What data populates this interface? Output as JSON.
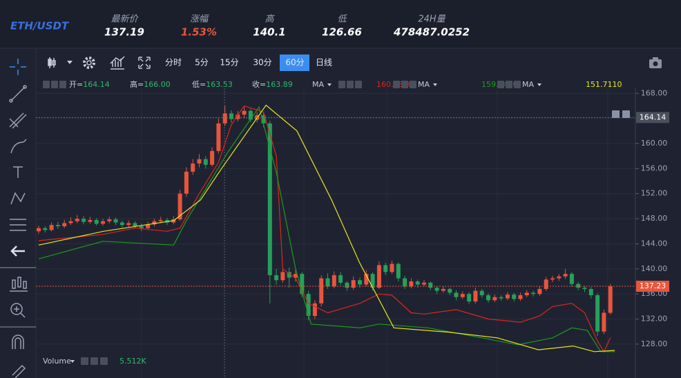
{
  "header": {
    "pair": "ETH/USDT",
    "stats": [
      {
        "label": "最新价",
        "value": "137.19"
      },
      {
        "label": "涨幅",
        "value": "1.53%"
      },
      {
        "label": "高",
        "value": "140.1"
      },
      {
        "label": "低",
        "value": "126.66"
      },
      {
        "label": "24H量",
        "value": "478487.0252"
      }
    ]
  },
  "toolbar": {
    "intervals": [
      "分时",
      "5分",
      "15分",
      "30分",
      "60分",
      "日线"
    ],
    "active": 4
  },
  "legend": {
    "ohlc": [
      {
        "label": "开=",
        "value": "164.14"
      },
      {
        "label": "高=",
        "value": "166.00"
      },
      {
        "label": "低=",
        "value": "163.53"
      },
      {
        "label": "收=",
        "value": "163.89"
      }
    ]
  },
  "chart_data": {
    "type": "candlestick",
    "up_color": "#e8553e",
    "down_color": "#26a05a",
    "ylim": [
      122.6,
      168.8
    ],
    "yticks": [
      {
        "value": 128,
        "label": "128.00"
      },
      {
        "value": 132,
        "label": "132.00"
      },
      {
        "value": 136,
        "label": "136.00"
      },
      {
        "value": 140,
        "label": "140.00"
      },
      {
        "value": 144,
        "label": "144.00"
      },
      {
        "value": 148,
        "label": "148.00"
      },
      {
        "value": 152,
        "label": "152.00"
      },
      {
        "value": 156,
        "label": "156.00"
      },
      {
        "value": 160,
        "label": "160.00"
      },
      {
        "value": 164,
        "label": "164.00"
      },
      {
        "value": 168,
        "label": "168.00"
      }
    ],
    "grid": true,
    "ohlc": [
      [
        146.0,
        146.9,
        145.6,
        146.5
      ],
      [
        146.5,
        146.8,
        145.8,
        146.2
      ],
      [
        146.2,
        147.4,
        146.0,
        147.0
      ],
      [
        147.0,
        147.5,
        146.4,
        146.8
      ],
      [
        146.8,
        147.8,
        146.5,
        147.3
      ],
      [
        147.3,
        148.2,
        147.0,
        147.6
      ],
      [
        147.6,
        148.6,
        147.3,
        148.0
      ],
      [
        148.0,
        148.4,
        147.1,
        147.5
      ],
      [
        147.5,
        148.3,
        147.2,
        147.8
      ],
      [
        147.8,
        148.1,
        146.9,
        147.2
      ],
      [
        147.2,
        148.0,
        146.9,
        147.6
      ],
      [
        147.6,
        148.3,
        147.3,
        147.9
      ],
      [
        147.9,
        148.2,
        147.0,
        147.4
      ],
      [
        147.4,
        147.7,
        146.6,
        147.0
      ],
      [
        147.0,
        147.7,
        146.7,
        147.3
      ],
      [
        147.3,
        147.6,
        146.4,
        146.8
      ],
      [
        146.8,
        147.2,
        146.0,
        146.5
      ],
      [
        146.5,
        147.5,
        146.2,
        147.1
      ],
      [
        147.1,
        148.0,
        146.8,
        147.6
      ],
      [
        147.6,
        148.3,
        147.3,
        147.8
      ],
      [
        147.8,
        148.1,
        147.0,
        147.4
      ],
      [
        147.4,
        148.4,
        147.1,
        147.9
      ],
      [
        147.9,
        152.6,
        147.6,
        152.0
      ],
      [
        152.0,
        156.2,
        151.5,
        155.5
      ],
      [
        155.5,
        157.5,
        155.0,
        156.8
      ],
      [
        156.8,
        158.3,
        156.2,
        157.5
      ],
      [
        157.5,
        158.0,
        156.0,
        156.6
      ],
      [
        156.6,
        159.4,
        156.3,
        158.8
      ],
      [
        158.8,
        164.0,
        158.4,
        163.2
      ],
      [
        163.2,
        166.0,
        162.8,
        164.8
      ],
      [
        164.8,
        165.3,
        163.3,
        163.9
      ],
      [
        163.9,
        165.2,
        163.5,
        164.6
      ],
      [
        164.6,
        165.8,
        164.0,
        165.2
      ],
      [
        165.2,
        165.5,
        163.4,
        163.8
      ],
      [
        163.8,
        165.0,
        163.4,
        164.5
      ],
      [
        164.5,
        164.8,
        162.6,
        163.2
      ],
      [
        163.2,
        163.6,
        134.5,
        139.0
      ],
      [
        139.0,
        140.0,
        137.5,
        138.2
      ],
      [
        138.2,
        140.0,
        137.8,
        139.5
      ],
      [
        139.5,
        140.2,
        137.0,
        138.6
      ],
      [
        138.6,
        139.8,
        138.0,
        139.2
      ],
      [
        139.2,
        139.5,
        135.5,
        136.0
      ],
      [
        136.0,
        136.5,
        131.8,
        132.5
      ],
      [
        132.5,
        135.0,
        132.0,
        134.5
      ],
      [
        134.5,
        139.0,
        134.0,
        138.5
      ],
      [
        138.5,
        139.3,
        136.8,
        137.2
      ],
      [
        137.2,
        139.6,
        136.9,
        139.0
      ],
      [
        139.0,
        139.5,
        137.4,
        137.8
      ],
      [
        137.8,
        138.0,
        136.5,
        137.0
      ],
      [
        137.0,
        138.8,
        136.7,
        138.2
      ],
      [
        138.2,
        138.6,
        137.0,
        137.5
      ],
      [
        137.5,
        139.8,
        137.2,
        139.2
      ],
      [
        139.2,
        139.5,
        136.5,
        137.0
      ],
      [
        137.0,
        141.2,
        136.8,
        140.6
      ],
      [
        140.6,
        141.0,
        139.0,
        139.5
      ],
      [
        139.5,
        141.3,
        139.2,
        140.8
      ],
      [
        140.8,
        141.0,
        138.0,
        138.5
      ],
      [
        138.5,
        138.9,
        136.8,
        137.2
      ],
      [
        137.2,
        138.5,
        136.9,
        138.0
      ],
      [
        138.0,
        138.3,
        137.0,
        137.5
      ],
      [
        137.5,
        138.2,
        137.2,
        137.8
      ],
      [
        137.8,
        138.0,
        136.6,
        137.0
      ],
      [
        137.0,
        137.3,
        136.0,
        136.5
      ],
      [
        136.5,
        137.2,
        136.2,
        136.8
      ],
      [
        136.8,
        137.0,
        135.8,
        136.2
      ],
      [
        136.2,
        136.6,
        135.0,
        135.5
      ],
      [
        135.5,
        136.4,
        135.2,
        136.0
      ],
      [
        136.0,
        136.3,
        134.4,
        134.8
      ],
      [
        134.8,
        137.0,
        134.5,
        136.5
      ],
      [
        136.5,
        136.8,
        135.4,
        135.8
      ],
      [
        135.8,
        136.1,
        134.6,
        135.0
      ],
      [
        135.0,
        135.9,
        134.7,
        135.5
      ],
      [
        135.5,
        135.8,
        134.9,
        135.3
      ],
      [
        135.3,
        136.3,
        135.0,
        135.9
      ],
      [
        135.9,
        136.2,
        134.8,
        135.2
      ],
      [
        135.2,
        136.2,
        134.9,
        135.8
      ],
      [
        135.8,
        136.6,
        135.5,
        136.2
      ],
      [
        136.2,
        136.5,
        135.6,
        136.0
      ],
      [
        136.0,
        137.2,
        135.7,
        136.8
      ],
      [
        136.8,
        138.7,
        136.5,
        138.3
      ],
      [
        138.3,
        138.9,
        137.9,
        138.5
      ],
      [
        138.5,
        139.2,
        138.1,
        138.8
      ],
      [
        138.8,
        140.0,
        138.4,
        139.2
      ],
      [
        139.2,
        139.5,
        137.2,
        137.6
      ],
      [
        137.6,
        137.9,
        136.6,
        137.0
      ],
      [
        137.0,
        137.3,
        136.3,
        136.8
      ],
      [
        136.8,
        137.1,
        135.3,
        135.8
      ],
      [
        135.8,
        136.1,
        129.3,
        130.0
      ],
      [
        130.0,
        133.5,
        129.6,
        133.0
      ],
      [
        133.0,
        137.6,
        132.7,
        137.2
      ]
    ],
    "series": [
      {
        "name": "MA",
        "current": "160.8800",
        "color": "#e0241f",
        "x": [
          0,
          5,
          10,
          15,
          20,
          22,
          25,
          28,
          30,
          32,
          35,
          37,
          38,
          40,
          42,
          45,
          50,
          53,
          55,
          58,
          60,
          65,
          70,
          75,
          78,
          80,
          83,
          85,
          87,
          88,
          89
        ],
        "values": [
          144.5,
          145.0,
          145.5,
          146.5,
          146.0,
          146.5,
          152,
          157,
          163,
          166,
          165,
          158,
          140,
          138.5,
          134.5,
          133,
          134.5,
          136,
          135.8,
          133,
          132.8,
          133.5,
          132,
          131.5,
          132.5,
          134,
          134.5,
          133,
          128.5,
          126.8,
          129
        ]
      },
      {
        "name": "MA",
        "current": "159.1400",
        "color": "#1e9a1e",
        "x": [
          0,
          10,
          21,
          23,
          29.5,
          34.3,
          37,
          40,
          42.4,
          50,
          53,
          60.6,
          69,
          74.6,
          80,
          83,
          85.4,
          87.5,
          89.7
        ],
        "values": [
          141.6,
          144.4,
          143.8,
          147.7,
          158.7,
          165.8,
          155.4,
          140,
          131.2,
          130.6,
          131.2,
          130.6,
          129,
          127.9,
          129,
          130.6,
          130.2,
          126.8,
          126.8
        ]
      },
      {
        "name": "MA",
        "current": "151.7110",
        "color": "#e8e81c",
        "x": [
          0,
          10.1,
          21,
          25.2,
          28.4,
          35.4,
          40.2,
          45.6,
          49.9,
          55.3,
          63.9,
          71.4,
          77.8,
          83.2,
          86.5,
          89.7
        ],
        "values": [
          143.8,
          146,
          147.7,
          151,
          155.9,
          166.1,
          162,
          151,
          141.1,
          130.6,
          129.9,
          129,
          127.1,
          127.7,
          126.8,
          127
        ]
      }
    ],
    "ref_price": {
      "value": 164.14,
      "label": "164.14"
    },
    "last_price": {
      "value": 137.23,
      "label": "137.23"
    },
    "volume": {
      "name": "Volume",
      "value": "5.512K"
    }
  }
}
